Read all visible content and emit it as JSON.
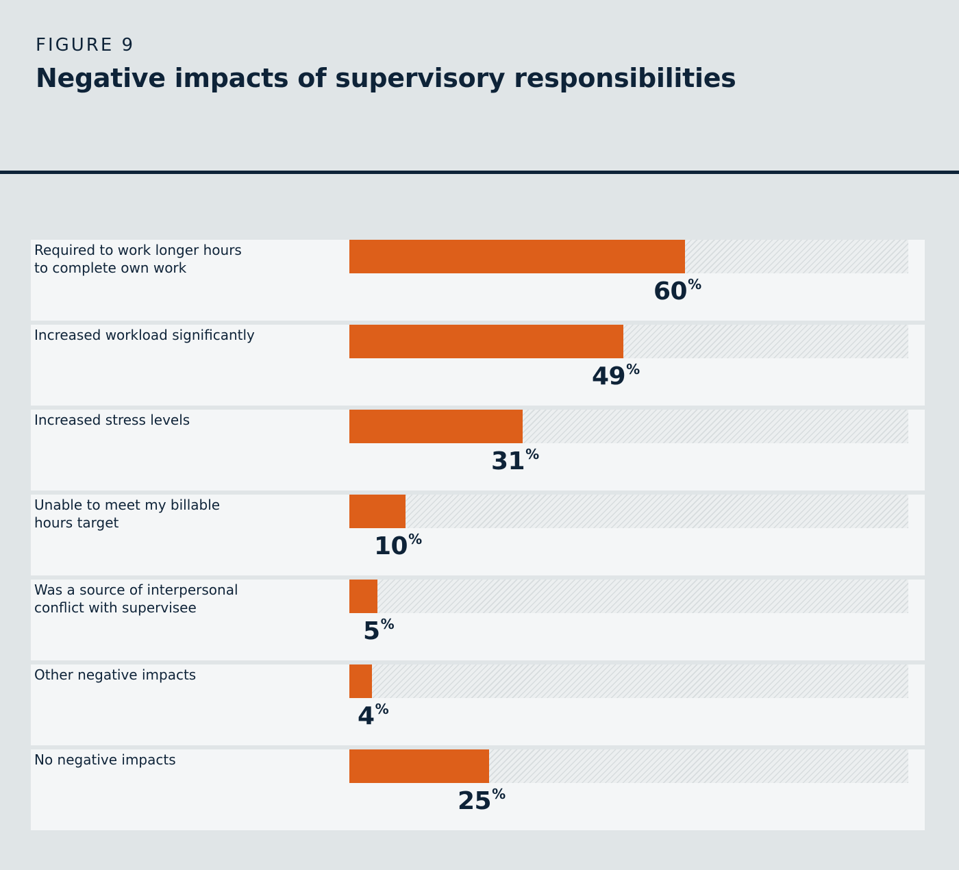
{
  "header": {
    "eyebrow": "FIGURE 9",
    "title": "Negative impacts of supervisory responsibilities"
  },
  "colors": {
    "background": "#e0e5e7",
    "panel": "#f4f6f7",
    "bar": "#dd5f1a",
    "text": "#0e2338",
    "track_hatch": "#d7dcde"
  },
  "chart_data": {
    "type": "bar",
    "orientation": "horizontal",
    "title": "Negative impacts of supervisory responsibilities",
    "categories": [
      "Required to work longer hours\nto complete own work",
      "Increased workload significantly",
      "Increased stress levels",
      "Unable to meet my billable\nhours target",
      "Was a source of interpersonal\nconflict with supervisee",
      "Other negative impacts",
      "No negative impacts"
    ],
    "values": [
      60,
      49,
      31,
      10,
      5,
      4,
      25
    ],
    "unit": "%",
    "xlim": [
      0,
      100
    ],
    "xlabel": "",
    "ylabel": "",
    "grid": false,
    "legend": "none"
  }
}
